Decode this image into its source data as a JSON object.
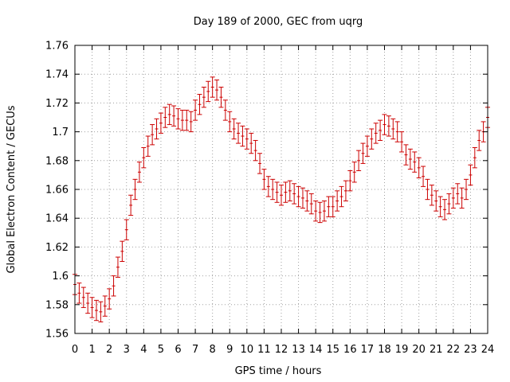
{
  "chart_data": {
    "type": "scatter",
    "title": "Day 189 of 2000, GEC from uqrg",
    "xlabel": "GPS time / hours",
    "ylabel": "Global Electron Content / GECUs",
    "xlim": [
      0,
      24
    ],
    "ylim": [
      1.56,
      1.76
    ],
    "xticks": [
      "0",
      "1",
      "2",
      "3",
      "4",
      "5",
      "6",
      "7",
      "8",
      "9",
      "10",
      "11",
      "12",
      "13",
      "14",
      "15",
      "16",
      "17",
      "18",
      "19",
      "20",
      "21",
      "22",
      "23",
      "24"
    ],
    "yticks": [
      "1.56",
      "1.58",
      "1.6",
      "1.62",
      "1.64",
      "1.66",
      "1.68",
      "1.7",
      "1.72",
      "1.74",
      "1.76"
    ],
    "grid": true,
    "series_color": "#cc0000",
    "error_half_width": 0.007,
    "x": [
      0,
      0.25,
      0.5,
      0.75,
      1,
      1.25,
      1.5,
      1.75,
      2,
      2.25,
      2.5,
      2.75,
      3,
      3.25,
      3.5,
      3.75,
      4,
      4.25,
      4.5,
      4.75,
      5,
      5.25,
      5.5,
      5.75,
      6,
      6.25,
      6.5,
      6.75,
      7,
      7.25,
      7.5,
      7.75,
      8,
      8.25,
      8.5,
      8.75,
      9,
      9.25,
      9.5,
      9.75,
      10,
      10.25,
      10.5,
      10.75,
      11,
      11.25,
      11.5,
      11.75,
      12,
      12.25,
      12.5,
      12.75,
      13,
      13.25,
      13.5,
      13.75,
      14,
      14.25,
      14.5,
      14.75,
      15,
      15.25,
      15.5,
      15.75,
      16,
      16.25,
      16.5,
      16.75,
      17,
      17.25,
      17.5,
      17.75,
      18,
      18.25,
      18.5,
      18.75,
      19,
      19.25,
      19.5,
      19.75,
      20,
      20.25,
      20.5,
      20.75,
      21,
      21.25,
      21.5,
      21.75,
      22,
      22.25,
      22.5,
      22.75,
      23,
      23.25,
      23.5,
      23.75,
      24
    ],
    "y": [
      1.594,
      1.588,
      1.585,
      1.581,
      1.578,
      1.576,
      1.575,
      1.579,
      1.584,
      1.593,
      1.606,
      1.617,
      1.632,
      1.649,
      1.66,
      1.672,
      1.682,
      1.69,
      1.698,
      1.702,
      1.706,
      1.71,
      1.712,
      1.711,
      1.709,
      1.708,
      1.708,
      1.707,
      1.715,
      1.719,
      1.724,
      1.728,
      1.731,
      1.729,
      1.724,
      1.715,
      1.707,
      1.702,
      1.699,
      1.697,
      1.695,
      1.692,
      1.687,
      1.678,
      1.667,
      1.662,
      1.66,
      1.658,
      1.656,
      1.658,
      1.659,
      1.657,
      1.655,
      1.654,
      1.652,
      1.65,
      1.645,
      1.644,
      1.645,
      1.648,
      1.648,
      1.652,
      1.655,
      1.659,
      1.666,
      1.672,
      1.68,
      1.685,
      1.69,
      1.695,
      1.699,
      1.701,
      1.705,
      1.704,
      1.702,
      1.7,
      1.693,
      1.684,
      1.681,
      1.679,
      1.675,
      1.669,
      1.66,
      1.656,
      1.652,
      1.648,
      1.646,
      1.65,
      1.654,
      1.657,
      1.654,
      1.66,
      1.67,
      1.682,
      1.694,
      1.7,
      1.71
    ]
  }
}
